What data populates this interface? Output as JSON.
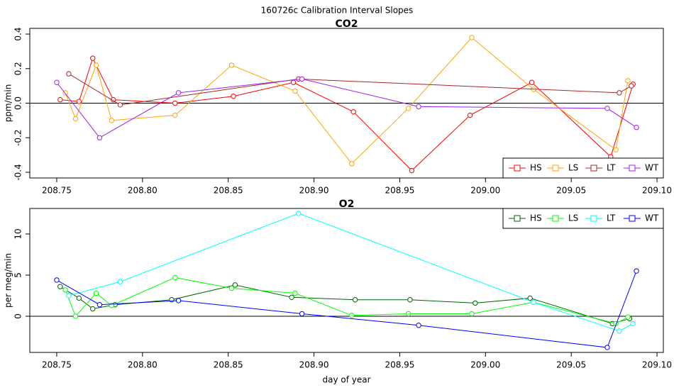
{
  "title": "160726c   Calibration Interval Slopes",
  "chart_data": [
    {
      "type": "line",
      "title": "CO2",
      "ylabel": "ppm/min",
      "xlim": [
        208.7343,
        209.1037
      ],
      "ylim": [
        -0.433,
        0.433
      ],
      "xticks": [
        208.75,
        {
          "value": 208.8,
          "label": "208.80"
        },
        208.85,
        {
          "value": 208.9,
          "label": "208.90"
        },
        208.95,
        {
          "value": 209.0,
          "label": "209.00"
        },
        209.05,
        {
          "value": 209.1,
          "label": "209.10"
        }
      ],
      "yticks": [
        -0.4,
        -0.2,
        {
          "value": 0,
          "label": "0.0"
        },
        0.2,
        0.4
      ],
      "reference_line": 0,
      "legend": "bottomright",
      "series": [
        {
          "name": "HS",
          "color": "#ff0000",
          "x": [
            208.752,
            208.763,
            208.771,
            208.783,
            208.819,
            208.853,
            208.888,
            208.923,
            208.957,
            208.991,
            209.027,
            209.073,
            209.086
          ],
          "values": [
            0.02,
            0.01,
            0.26,
            0.02,
            0.0,
            0.04,
            0.12,
            -0.05,
            -0.39,
            -0.07,
            0.12,
            -0.31,
            0.11
          ]
        },
        {
          "name": "LS",
          "color": "#ffa500",
          "x": [
            208.755,
            208.761,
            208.773,
            208.782,
            208.819,
            208.852,
            208.889,
            208.922,
            208.955,
            208.992,
            209.028,
            209.076,
            209.083
          ],
          "values": [
            0.06,
            -0.09,
            0.22,
            -0.1,
            -0.07,
            0.22,
            0.07,
            -0.35,
            -0.03,
            0.38,
            0.08,
            -0.27,
            0.13
          ]
        },
        {
          "name": "LT",
          "color": "#a52a2a",
          "x": [
            208.757,
            208.787,
            208.891,
            209.078,
            209.085
          ],
          "values": [
            0.17,
            -0.01,
            0.14,
            0.06,
            0.1
          ]
        },
        {
          "name": "WT",
          "color": "#a020f0",
          "x": [
            208.75,
            208.775,
            208.821,
            208.893,
            208.961,
            209.071,
            209.088
          ],
          "values": [
            0.12,
            -0.2,
            0.06,
            0.14,
            -0.02,
            -0.03,
            -0.14
          ]
        }
      ]
    },
    {
      "type": "line",
      "title": "O2",
      "ylabel": "per meg/min",
      "xlabel": "day of year",
      "xlim": [
        208.7343,
        209.1037
      ],
      "ylim": [
        -4.4,
        13.1
      ],
      "xticks": [
        208.75,
        {
          "value": 208.8,
          "label": "208.80"
        },
        208.85,
        {
          "value": 208.9,
          "label": "208.90"
        },
        208.95,
        {
          "value": 209.0,
          "label": "209.00"
        },
        209.05,
        {
          "value": 209.1,
          "label": "209.10"
        }
      ],
      "yticks": [
        0,
        5,
        10
      ],
      "reference_line": 0,
      "legend": "topright",
      "series": [
        {
          "name": "HS",
          "color": "#006400",
          "x": [
            208.752,
            208.763,
            208.771,
            208.784,
            208.817,
            208.854,
            208.887,
            208.924,
            208.956,
            208.994,
            209.026,
            209.074,
            209.084
          ],
          "values": [
            3.6,
            2.2,
            0.9,
            1.4,
            2.0,
            3.8,
            2.3,
            2.0,
            2.0,
            1.6,
            2.2,
            -0.9,
            -0.3
          ]
        },
        {
          "name": "LS",
          "color": "#00ff00",
          "x": [
            208.755,
            208.761,
            208.773,
            208.782,
            208.819,
            208.852,
            208.889,
            208.922,
            208.955,
            208.992,
            209.028,
            209.076,
            209.083
          ],
          "values": [
            3.2,
            0.0,
            2.8,
            1.3,
            4.7,
            3.4,
            2.8,
            0.1,
            0.3,
            0.3,
            1.7,
            -0.9,
            -0.1
          ]
        },
        {
          "name": "LT",
          "color": "#00ffff",
          "x": [
            208.757,
            208.787,
            208.891,
            209.028,
            209.078,
            209.086
          ],
          "values": [
            2.5,
            4.2,
            12.5,
            1.7,
            -1.8,
            -0.9
          ]
        },
        {
          "name": "WT",
          "color": "#0000ff",
          "x": [
            208.75,
            208.775,
            208.821,
            208.893,
            208.961,
            209.071,
            209.088
          ],
          "values": [
            4.4,
            1.4,
            1.9,
            0.3,
            -1.1,
            -3.8,
            5.5
          ]
        }
      ]
    }
  ]
}
